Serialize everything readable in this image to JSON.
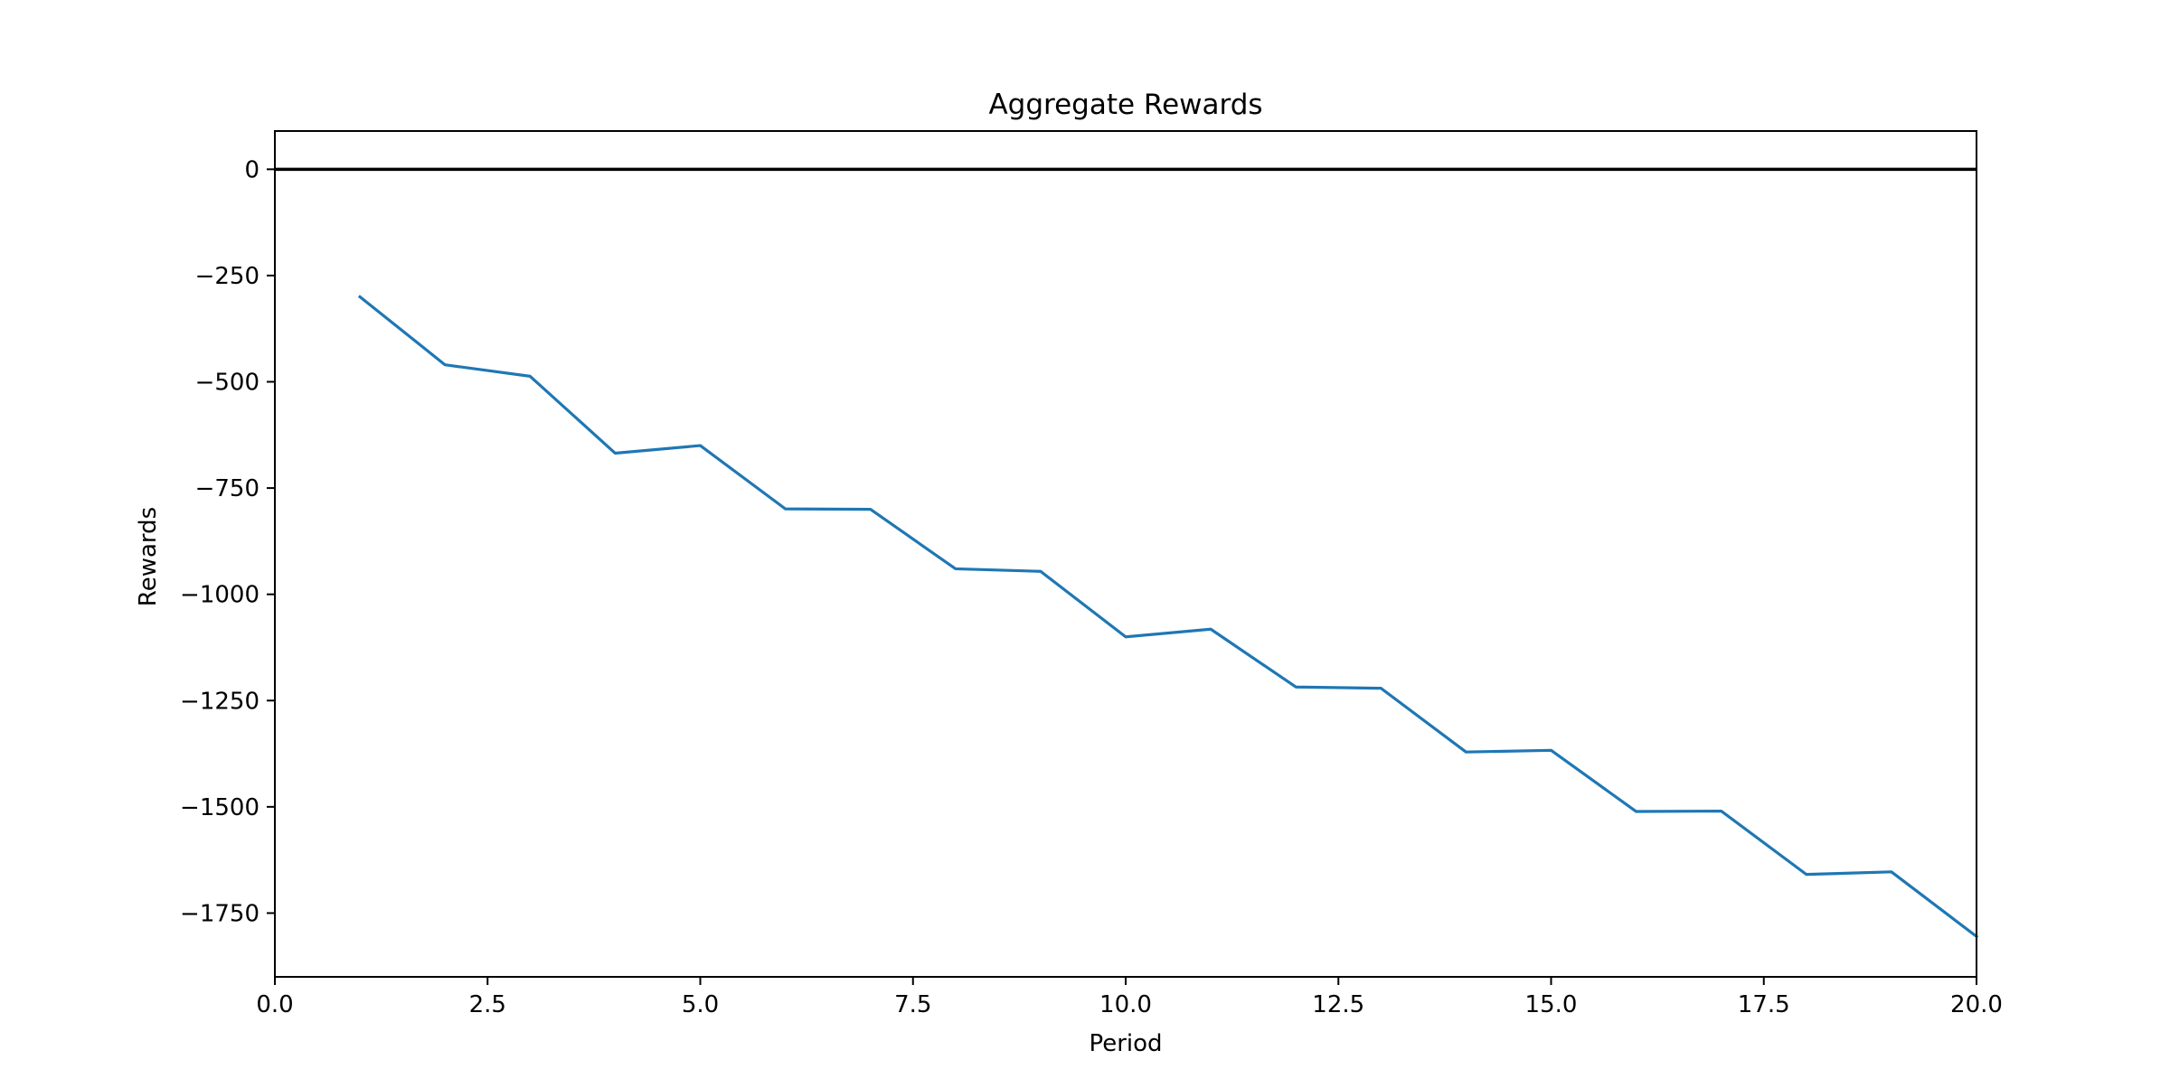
{
  "chart_data": {
    "type": "line",
    "title": "Aggregate Rewards",
    "xlabel": "Period",
    "ylabel": "Rewards",
    "xlim": [
      0,
      20
    ],
    "ylim": [
      -1900,
      90
    ],
    "xticks": [
      0,
      2.5,
      5,
      7.5,
      10,
      12.5,
      15,
      17.5,
      20
    ],
    "xtick_labels": [
      "0.0",
      "2.5",
      "5.0",
      "7.5",
      "10.0",
      "12.5",
      "15.0",
      "17.5",
      "20.0"
    ],
    "yticks": [
      0,
      -250,
      -500,
      -750,
      -1000,
      -1250,
      -1500,
      -1750
    ],
    "ytick_labels": [
      "0",
      "−250",
      "−500",
      "−750",
      "−1000",
      "−1250",
      "−1500",
      "−1750"
    ],
    "grid": false,
    "reference_line": {
      "y": 0,
      "color": "#000000"
    },
    "series": [
      {
        "color": "#1f77b4",
        "x": [
          1,
          2,
          3,
          4,
          5,
          6,
          7,
          8,
          9,
          10,
          11,
          12,
          13,
          14,
          15,
          16,
          17,
          18,
          19,
          20
        ],
        "y": [
          -300,
          -460,
          -487,
          -668,
          -650,
          -799,
          -800,
          -940,
          -946,
          -1100,
          -1082,
          -1218,
          -1221,
          -1371,
          -1367,
          -1511,
          -1510,
          -1659,
          -1653,
          -1805
        ]
      }
    ]
  }
}
